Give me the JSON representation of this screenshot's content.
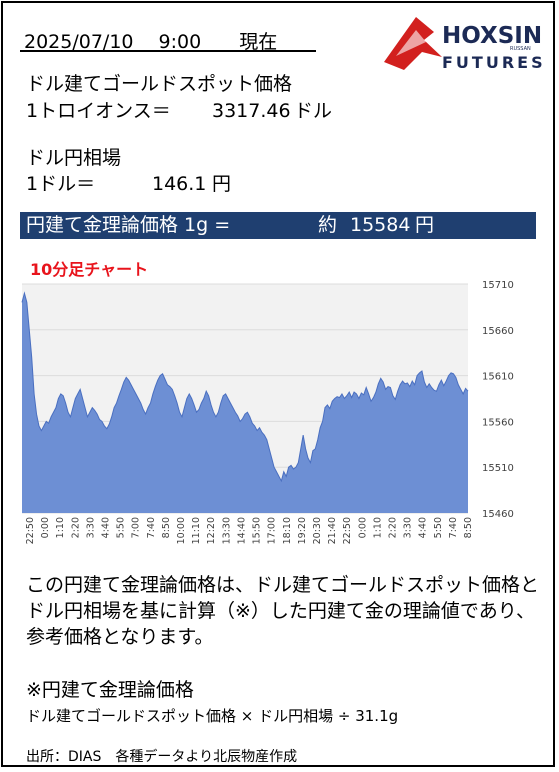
{
  "header": {
    "datetime": "2025/07/10　 9:00　　現在",
    "logo_text": "HOXSIN",
    "logo_sub": "FUTURES",
    "logo_small": "RUSSAN"
  },
  "gold": {
    "label": "ドル建てゴールドスポット価格",
    "unit_label": "1トロイオンス＝",
    "value": "3317.46",
    "currency": "ドル"
  },
  "fx": {
    "label": "ドル円相場",
    "unit_label": "1ドル＝",
    "value": "146.1",
    "currency": "円"
  },
  "banner": {
    "label": "円建て金理論価格 1g =",
    "prefix": "約",
    "value": "15584",
    "currency": "円"
  },
  "chart_title": "10分足チャート",
  "chart_data": {
    "type": "area",
    "ylim": [
      15460,
      15710
    ],
    "yticks": [
      "15710",
      "15660",
      "15610",
      "15560",
      "15510",
      "15460"
    ],
    "xticks": [
      "22:50",
      "0:00",
      "1:10",
      "2:20",
      "3:30",
      "4:40",
      "5:50",
      "7:00",
      "7:40",
      "8:50",
      "10:00",
      "11:10",
      "12:20",
      "13:30",
      "14:40",
      "15:50",
      "17:00",
      "18:10",
      "19:20",
      "20:30",
      "21:40",
      "22:50",
      "0:00",
      "1:10",
      "2:20",
      "3:30",
      "4:40",
      "5:50",
      "7:40",
      "8:50"
    ],
    "fill_color": "#6d8fd4",
    "top_color": "#4a6fc0",
    "values": [
      15690,
      15700,
      15690,
      15660,
      15630,
      15590,
      15568,
      15555,
      15550,
      15555,
      15560,
      15558,
      15565,
      15570,
      15575,
      15585,
      15590,
      15588,
      15580,
      15570,
      15565,
      15575,
      15585,
      15590,
      15595,
      15585,
      15575,
      15565,
      15570,
      15575,
      15572,
      15568,
      15562,
      15560,
      15555,
      15552,
      15557,
      15565,
      15575,
      15580,
      15588,
      15595,
      15603,
      15608,
      15605,
      15600,
      15595,
      15590,
      15585,
      15580,
      15573,
      15568,
      15575,
      15580,
      15590,
      15598,
      15605,
      15610,
      15612,
      15606,
      15600,
      15598,
      15595,
      15588,
      15580,
      15570,
      15565,
      15575,
      15585,
      15590,
      15585,
      15578,
      15570,
      15573,
      15580,
      15585,
      15593,
      15588,
      15578,
      15570,
      15565,
      15570,
      15580,
      15588,
      15590,
      15585,
      15580,
      15575,
      15570,
      15566,
      15560,
      15563,
      15568,
      15570,
      15565,
      15558,
      15555,
      15550,
      15553,
      15548,
      15545,
      15540,
      15530,
      15520,
      15510,
      15505,
      15500,
      15495,
      15505,
      15500,
      15510,
      15512,
      15508,
      15510,
      15515,
      15530,
      15545,
      15530,
      15520,
      15515,
      15528,
      15530,
      15540,
      15553,
      15560,
      15575,
      15578,
      15574,
      15582,
      15585,
      15587,
      15586,
      15590,
      15585,
      15588,
      15592,
      15586,
      15592,
      15590,
      15585,
      15591,
      15589,
      15597,
      15590,
      15582,
      15586,
      15592,
      15601,
      15607,
      15603,
      15595,
      15598,
      15597,
      15588,
      15584,
      15593,
      15600,
      15604,
      15601,
      15602,
      15598,
      15604,
      15600,
      15610,
      15613,
      15615,
      15603,
      15597,
      15601,
      15597,
      15594,
      15593,
      15600,
      15605,
      15599,
      15604,
      15610,
      15613,
      15612,
      15608,
      15600,
      15595,
      15590,
      15596,
      15593
    ]
  },
  "description": "この円建て金理論価格は、ドル建てゴールドスポット価格とドル円相場を基に計算（※）した円建て金の理論値であり、参考価格となります。",
  "formula": {
    "heading": "※円建て金理論価格",
    "body": "ドル建てゴールドスポット価格 × ドル円相場 ÷ 31.1g"
  },
  "source": "出所：DIAS　各種データより北辰物産作成"
}
